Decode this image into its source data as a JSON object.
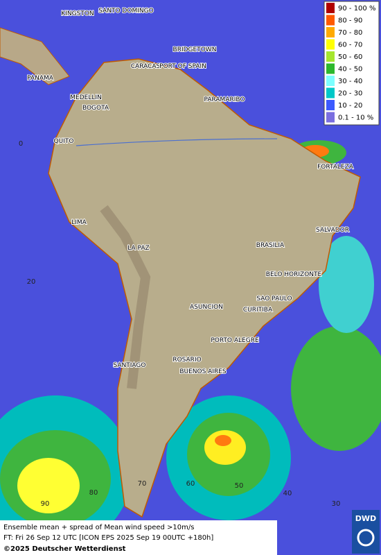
{
  "map": {
    "cities": [
      "KINGSTON",
      "SANTO DOMINGO",
      "BRIDGETOWN",
      "CARACAS",
      "PORT OF SPAIN",
      "PANAMA",
      "MEDELLIN",
      "BOGOTA",
      "PARAMARIBO",
      "QUITO",
      "FORTALEZA",
      "LIMA",
      "SALVADOR",
      "LA PAZ",
      "BRASILIA",
      "BELO HORIZONTE",
      "SAO PAULO",
      "ASUNCION",
      "CURITIBA",
      "PORTO ALEGRE",
      "SANTIAGO",
      "ROSARIO",
      "BUENOS AIRES"
    ],
    "grid_labels": [
      "0",
      "20",
      "90",
      "80",
      "70",
      "60",
      "50",
      "40",
      "30"
    ]
  },
  "legend": [
    {
      "label": "90 - 100 %",
      "color": "#b00000"
    },
    {
      "label": "80 - 90",
      "color": "#ff5a00"
    },
    {
      "label": "70 - 80",
      "color": "#ffaa00"
    },
    {
      "label": "60 - 70",
      "color": "#ffff00"
    },
    {
      "label": "50 - 60",
      "color": "#a6e62e"
    },
    {
      "label": "40 - 50",
      "color": "#2db82d"
    },
    {
      "label": "30 - 40",
      "color": "#7dffff"
    },
    {
      "label": "20 - 30",
      "color": "#00c8c8"
    },
    {
      "label": "10 - 20",
      "color": "#3c5aff"
    },
    {
      "label": "0.1 - 10 %",
      "color": "#7a6ee0"
    }
  ],
  "footer": {
    "line1": "Ensemble mean + spread of Mean wind speed >10m/s",
    "line2": "FT: Fri 26 Sep 12 UTC [ICON EPS 2025 Sep 19 00UTC +180h]",
    "line3": "©2025 Deutscher Wetterdienst",
    "logo": "DWD"
  }
}
